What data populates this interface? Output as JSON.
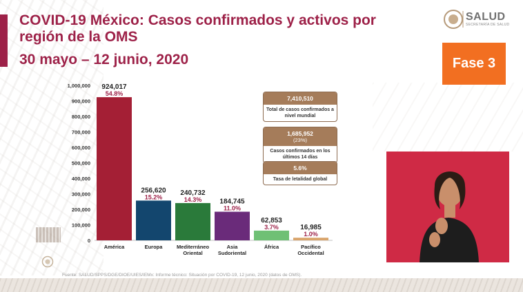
{
  "header": {
    "title": "COVID-19 México: Casos confirmados y activos por región de la OMS",
    "subtitle": "30 mayo – 12 junio, 2020"
  },
  "logo": {
    "text": "SALUD",
    "subtext": "SECRETARÍA DE SALUD"
  },
  "badge": {
    "label": "Fase 3"
  },
  "info_boxes": [
    {
      "head": "7,410,510",
      "body": "Total de casos confirmados a nivel mundial"
    },
    {
      "head": "1,685,952",
      "head2": "(23%)",
      "body": "Casos confirmados en los últimos 14 días"
    },
    {
      "head": "5.6%",
      "body": "Tasa de letalidad global"
    }
  ],
  "source": "Fuente: SALUD/SPPS/DGE/DIOE/UIES/IEMx: Informe técnico: Situación por COVID-19, 12 junio, 2020 (datos de OMS).",
  "colors": {
    "brand": "#9d2148",
    "accent": "#f26f21",
    "box": "#a57c5a"
  },
  "chart_data": {
    "type": "bar",
    "title": "",
    "xlabel": "",
    "ylabel": "",
    "ylim": [
      0,
      1000000
    ],
    "yticks": [
      "0",
      "100,000",
      "200,000",
      "300,000",
      "400,000",
      "500,000",
      "600,000",
      "700,000",
      "800,000",
      "900,000",
      "1,000,000"
    ],
    "categories": [
      "América",
      "Europa",
      "Mediterráneo Oriental",
      "Asia Sudoriental",
      "África",
      "Pacífico Occidental"
    ],
    "values": [
      924017,
      256620,
      240732,
      184745,
      62853,
      16985
    ],
    "value_labels": [
      "924,017",
      "256,620",
      "240,732",
      "184,745",
      "62,853",
      "16,985"
    ],
    "percent_labels": [
      "54.8%",
      "15.2%",
      "14.3%",
      "11.0%",
      "3.7%",
      "1.0%"
    ],
    "colors": [
      "#a41f35",
      "#13466e",
      "#2a7a3a",
      "#6a2b7a",
      "#6fc075",
      "#d9a46b"
    ],
    "grid": false,
    "legend": "none"
  }
}
